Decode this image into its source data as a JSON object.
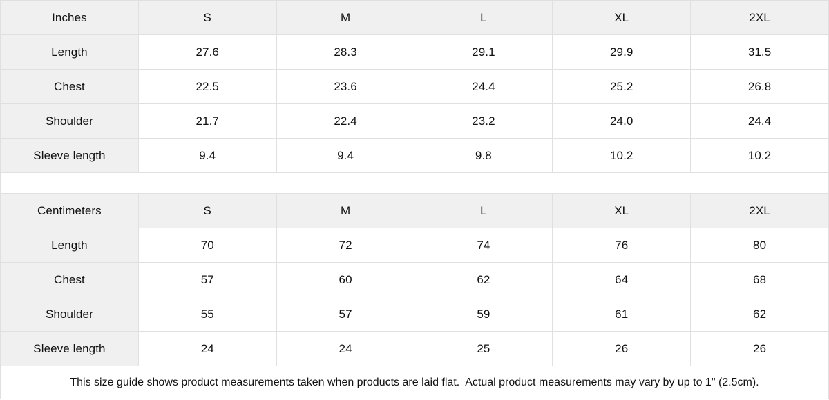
{
  "colors": {
    "header_bg": "#f0f0f0",
    "border": "#e0e0e0",
    "text": "#111111",
    "cell_bg": "#ffffff"
  },
  "inches_table": {
    "unit": "Inches",
    "sizes": [
      "S",
      "M",
      "L",
      "XL",
      "2XL"
    ],
    "rows": [
      {
        "label": "Length",
        "values": [
          "27.6",
          "28.3",
          "29.1",
          "29.9",
          "31.5"
        ]
      },
      {
        "label": "Chest",
        "values": [
          "22.5",
          "23.6",
          "24.4",
          "25.2",
          "26.8"
        ]
      },
      {
        "label": "Shoulder",
        "values": [
          "21.7",
          "22.4",
          "23.2",
          "24.0",
          "24.4"
        ]
      },
      {
        "label": "Sleeve length",
        "values": [
          "9.4",
          "9.4",
          "9.8",
          "10.2",
          "10.2"
        ]
      }
    ]
  },
  "cm_table": {
    "unit": "Centimeters",
    "sizes": [
      "S",
      "M",
      "L",
      "XL",
      "2XL"
    ],
    "rows": [
      {
        "label": "Length",
        "values": [
          "70",
          "72",
          "74",
          "76",
          "80"
        ]
      },
      {
        "label": "Chest",
        "values": [
          "57",
          "60",
          "62",
          "64",
          "68"
        ]
      },
      {
        "label": "Shoulder",
        "values": [
          "55",
          "57",
          "59",
          "61",
          "62"
        ]
      },
      {
        "label": "Sleeve length",
        "values": [
          "24",
          "24",
          "25",
          "26",
          "26"
        ]
      }
    ]
  },
  "footer": {
    "note": "This size guide shows product measurements taken when products are laid flat.  Actual product measurements may vary by up to 1\" (2.5cm)."
  }
}
